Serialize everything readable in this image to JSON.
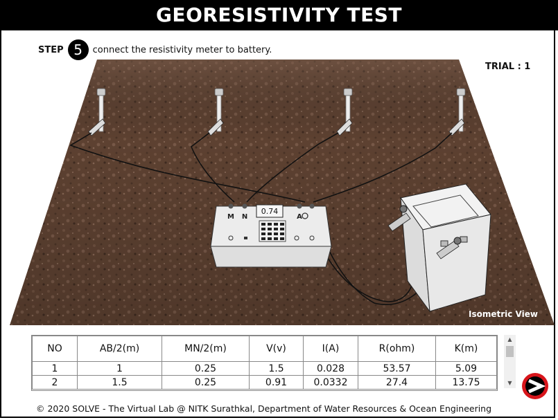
{
  "title": "GEORESISTIVITY TEST",
  "step": {
    "label": "STEP",
    "number": "5",
    "instruction": "connect the resistivity meter to battery."
  },
  "trial_label": "TRIAL : 1",
  "view_label": "Isometric View",
  "meter": {
    "reading": "0.74",
    "terminal_labels": [
      "M",
      "N",
      "A"
    ]
  },
  "table": {
    "headers": [
      "NO",
      "AB/2(m)",
      "MN/2(m)",
      "V(v)",
      "I(A)",
      "R(ohm)",
      "K(m)"
    ],
    "rows": [
      [
        "1",
        "1",
        "0.25",
        "1.5",
        "0.028",
        "53.57",
        "5.09"
      ],
      [
        "2",
        "1.5",
        "0.25",
        "0.91",
        "0.0332",
        "27.4",
        "13.75"
      ]
    ]
  },
  "footer": "© 2020 SOLVE - The Virtual Lab @ NITK Surathkal, Department of Water Resources & Ocean Engineering",
  "colors": {
    "soil": "#5e4232",
    "title_bar": "#000000",
    "next_button": "#d8151b"
  },
  "icons": {
    "next": "next-arrow-icon",
    "scroll_up": "scroll-up-icon",
    "scroll_down": "scroll-down-icon"
  }
}
